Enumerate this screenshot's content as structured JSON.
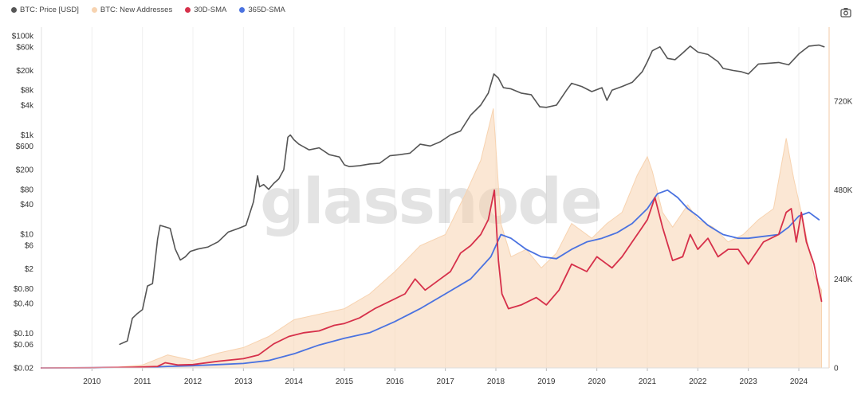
{
  "legend": [
    {
      "label": "BTC: Price [USD]",
      "color": "#555555"
    },
    {
      "label": "BTC: New Addresses",
      "color": "#f7d3b0"
    },
    {
      "label": "30D-SMA",
      "color": "#d6304a"
    },
    {
      "label": "365D-SMA",
      "color": "#4a72e0"
    }
  ],
  "camera_icon": "camera-icon",
  "watermark": "glassnode",
  "chart_data": {
    "type": "line",
    "xlim": [
      2009.0,
      2024.6
    ],
    "x_ticks": [
      "2010",
      "2011",
      "2012",
      "2013",
      "2014",
      "2015",
      "2016",
      "2017",
      "2018",
      "2019",
      "2020",
      "2021",
      "2022",
      "2023",
      "2024"
    ],
    "y_left": {
      "scale": "log",
      "ylim": [
        0.02,
        150000
      ],
      "ticks": [
        {
          "label": "$100k",
          "value": 100000
        },
        {
          "label": "$60k",
          "value": 60000
        },
        {
          "label": "$20k",
          "value": 20000
        },
        {
          "label": "$8k",
          "value": 8000
        },
        {
          "label": "$4k",
          "value": 4000
        },
        {
          "label": "$1k",
          "value": 1000
        },
        {
          "label": "$600",
          "value": 600
        },
        {
          "label": "$200",
          "value": 200
        },
        {
          "label": "$80",
          "value": 80
        },
        {
          "label": "$40",
          "value": 40
        },
        {
          "label": "$10",
          "value": 10
        },
        {
          "label": "$6",
          "value": 6
        },
        {
          "label": "$2",
          "value": 2
        },
        {
          "label": "$0.80",
          "value": 0.8
        },
        {
          "label": "$0.40",
          "value": 0.4
        },
        {
          "label": "$0.10",
          "value": 0.1
        },
        {
          "label": "$0.06",
          "value": 0.06
        },
        {
          "label": "$0.02",
          "value": 0.02
        }
      ]
    },
    "y_right": {
      "scale": "linear",
      "ylim": [
        0,
        920000
      ],
      "ticks": [
        {
          "label": "720K",
          "value": 720000
        },
        {
          "label": "480K",
          "value": 480000
        },
        {
          "label": "240K",
          "value": 240000
        },
        {
          "label": "0",
          "value": 0
        }
      ]
    },
    "series": [
      {
        "name": "BTC: Price [USD]",
        "axis": "left",
        "color": "#555555",
        "x": [
          2010.55,
          2010.7,
          2010.8,
          2010.9,
          2011.0,
          2011.1,
          2011.2,
          2011.3,
          2011.35,
          2011.45,
          2011.55,
          2011.65,
          2011.75,
          2011.85,
          2011.95,
          2012.1,
          2012.3,
          2012.5,
          2012.7,
          2012.9,
          2013.05,
          2013.2,
          2013.28,
          2013.32,
          2013.4,
          2013.5,
          2013.6,
          2013.7,
          2013.8,
          2013.88,
          2013.93,
          2014.0,
          2014.1,
          2014.3,
          2014.5,
          2014.7,
          2014.9,
          2015.0,
          2015.1,
          2015.3,
          2015.5,
          2015.7,
          2015.9,
          2016.1,
          2016.3,
          2016.5,
          2016.7,
          2016.9,
          2017.1,
          2017.3,
          2017.5,
          2017.7,
          2017.85,
          2017.96,
          2018.05,
          2018.15,
          2018.3,
          2018.5,
          2018.7,
          2018.87,
          2019.0,
          2019.2,
          2019.4,
          2019.5,
          2019.7,
          2019.9,
          2020.1,
          2020.2,
          2020.3,
          2020.5,
          2020.7,
          2020.9,
          2021.0,
          2021.1,
          2021.25,
          2021.4,
          2021.55,
          2021.7,
          2021.85,
          2022.0,
          2022.2,
          2022.4,
          2022.5,
          2022.7,
          2022.85,
          2023.0,
          2023.2,
          2023.4,
          2023.6,
          2023.8,
          2024.0,
          2024.2,
          2024.4,
          2024.5
        ],
        "y": [
          0.06,
          0.07,
          0.2,
          0.25,
          0.3,
          0.9,
          1.0,
          8,
          15,
          14,
          13,
          5,
          3,
          3.5,
          4.5,
          5,
          5.5,
          7,
          11,
          13,
          15,
          45,
          150,
          90,
          100,
          80,
          105,
          130,
          200,
          900,
          1000,
          800,
          650,
          500,
          550,
          400,
          360,
          250,
          230,
          240,
          260,
          270,
          380,
          400,
          430,
          650,
          600,
          730,
          1000,
          1200,
          2500,
          4000,
          7000,
          17000,
          14000,
          9000,
          8500,
          7000,
          6500,
          3700,
          3600,
          4000,
          8000,
          11000,
          9500,
          7500,
          9000,
          5000,
          8000,
          9500,
          11500,
          19000,
          30000,
          50000,
          60000,
          35000,
          33000,
          45000,
          62000,
          47000,
          42000,
          30000,
          22000,
          20000,
          19000,
          17000,
          27000,
          28000,
          29000,
          26000,
          43000,
          62000,
          65000,
          60000
        ]
      },
      {
        "name": "BTC: New Addresses",
        "axis": "right",
        "color": "#f7d3b0",
        "x": [
          2009.0,
          2010.0,
          2010.5,
          2011.0,
          2011.5,
          2012.0,
          2012.5,
          2013.0,
          2013.5,
          2014.0,
          2014.5,
          2015.0,
          2015.5,
          2016.0,
          2016.5,
          2017.0,
          2017.4,
          2017.7,
          2017.95,
          2018.1,
          2018.3,
          2018.6,
          2018.9,
          2019.2,
          2019.5,
          2019.9,
          2020.2,
          2020.5,
          2020.8,
          2021.0,
          2021.1,
          2021.3,
          2021.5,
          2021.8,
          2022.0,
          2022.3,
          2022.6,
          2022.9,
          2023.2,
          2023.5,
          2023.75,
          2023.9,
          2024.1,
          2024.3,
          2024.45
        ],
        "y": [
          0,
          500,
          2000,
          8000,
          35000,
          20000,
          40000,
          55000,
          85000,
          130000,
          145000,
          160000,
          200000,
          260000,
          330000,
          360000,
          470000,
          560000,
          700000,
          390000,
          300000,
          320000,
          270000,
          310000,
          390000,
          350000,
          390000,
          420000,
          520000,
          570000,
          530000,
          420000,
          380000,
          440000,
          400000,
          380000,
          340000,
          360000,
          400000,
          430000,
          620000,
          510000,
          390000,
          250000,
          210000
        ]
      },
      {
        "name": "30D-SMA",
        "axis": "right",
        "color": "#d6304a",
        "x": [
          2009.0,
          2010.0,
          2010.8,
          2011.3,
          2011.45,
          2011.7,
          2012.0,
          2012.5,
          2013.0,
          2013.3,
          2013.6,
          2013.9,
          2014.2,
          2014.5,
          2014.8,
          2015.0,
          2015.3,
          2015.6,
          2015.9,
          2016.2,
          2016.4,
          2016.6,
          2016.9,
          2017.1,
          2017.3,
          2017.5,
          2017.7,
          2017.85,
          2017.97,
          2018.05,
          2018.12,
          2018.25,
          2018.5,
          2018.8,
          2019.0,
          2019.25,
          2019.5,
          2019.8,
          2020.0,
          2020.3,
          2020.5,
          2020.7,
          2020.9,
          2021.0,
          2021.15,
          2021.3,
          2021.5,
          2021.7,
          2021.85,
          2022.0,
          2022.2,
          2022.4,
          2022.6,
          2022.8,
          2023.0,
          2023.3,
          2023.6,
          2023.75,
          2023.85,
          2023.95,
          2024.05,
          2024.15,
          2024.3,
          2024.45
        ],
        "y": [
          0,
          500,
          2000,
          4000,
          14000,
          8000,
          9000,
          18000,
          25000,
          35000,
          65000,
          85000,
          95000,
          100000,
          115000,
          120000,
          135000,
          160000,
          180000,
          200000,
          240000,
          210000,
          240000,
          260000,
          310000,
          330000,
          360000,
          400000,
          480000,
          290000,
          200000,
          160000,
          170000,
          190000,
          170000,
          210000,
          280000,
          260000,
          300000,
          270000,
          300000,
          340000,
          380000,
          400000,
          460000,
          380000,
          290000,
          300000,
          360000,
          320000,
          350000,
          300000,
          320000,
          320000,
          280000,
          340000,
          360000,
          420000,
          430000,
          340000,
          420000,
          340000,
          280000,
          180000
        ]
      },
      {
        "name": "365D-SMA",
        "axis": "right",
        "color": "#4a72e0",
        "x": [
          2009.0,
          2010.0,
          2011.0,
          2011.5,
          2012.0,
          2012.5,
          2013.0,
          2013.5,
          2014.0,
          2014.5,
          2015.0,
          2015.5,
          2016.0,
          2016.5,
          2017.0,
          2017.5,
          2017.9,
          2018.1,
          2018.3,
          2018.6,
          2018.9,
          2019.2,
          2019.5,
          2019.8,
          2020.1,
          2020.4,
          2020.7,
          2021.0,
          2021.2,
          2021.4,
          2021.6,
          2021.8,
          2022.0,
          2022.2,
          2022.5,
          2022.8,
          2023.0,
          2023.3,
          2023.6,
          2023.8,
          2024.0,
          2024.2,
          2024.4
        ],
        "y": [
          0,
          500,
          1500,
          4000,
          6000,
          9000,
          12000,
          20000,
          38000,
          62000,
          80000,
          95000,
          125000,
          160000,
          200000,
          240000,
          300000,
          360000,
          350000,
          320000,
          300000,
          295000,
          320000,
          340000,
          350000,
          365000,
          390000,
          430000,
          470000,
          480000,
          460000,
          430000,
          410000,
          385000,
          360000,
          350000,
          350000,
          355000,
          360000,
          380000,
          410000,
          420000,
          400000
        ]
      }
    ]
  }
}
